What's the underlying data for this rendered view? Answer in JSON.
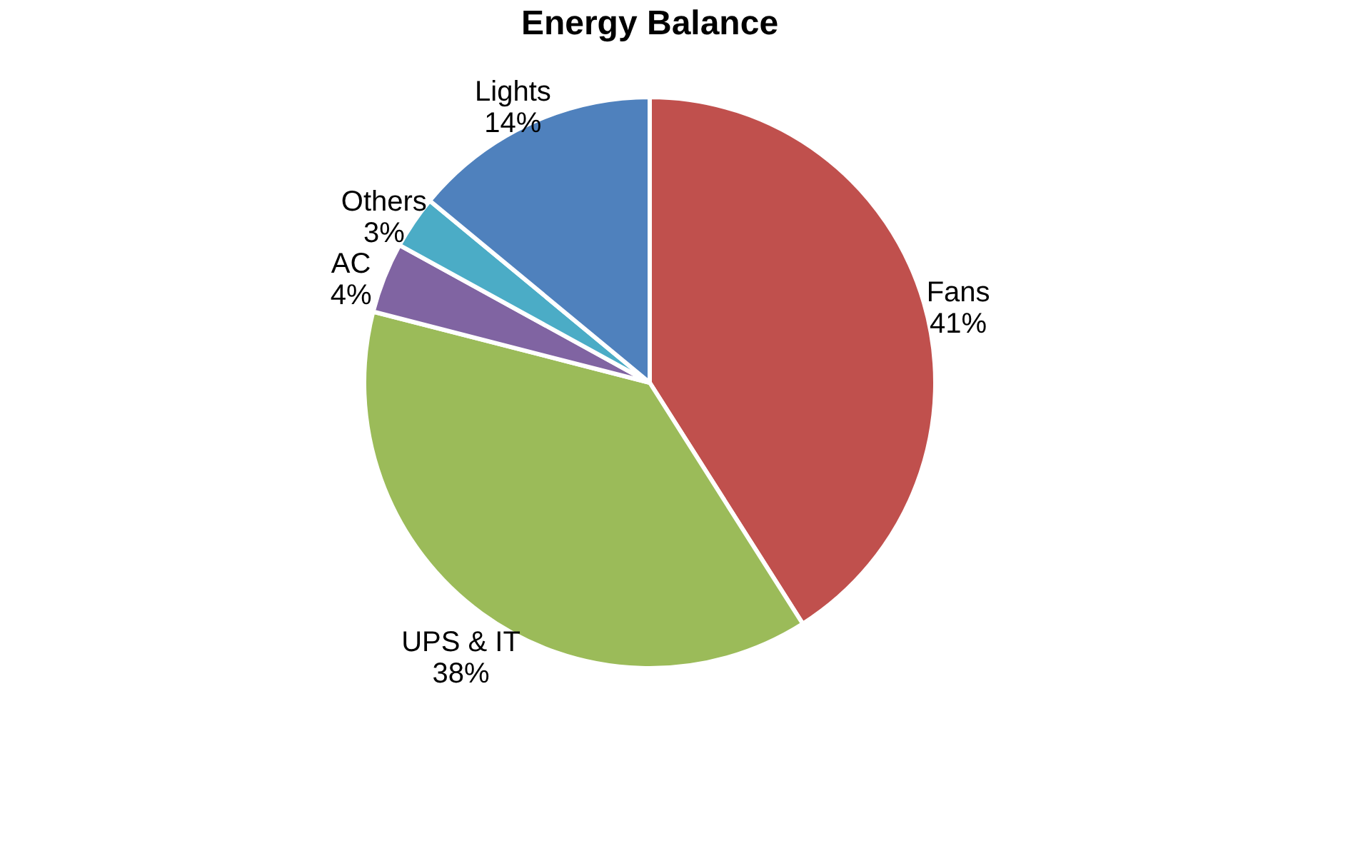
{
  "chart_data": {
    "type": "pie",
    "title": "Energy Balance",
    "categories": [
      "Fans",
      "UPS & IT",
      "AC",
      "Others",
      "Lights"
    ],
    "values": [
      41,
      38,
      4,
      3,
      14
    ],
    "colors": [
      "#c0504d",
      "#9bbb59",
      "#8064a2",
      "#4bacc6",
      "#4f81bd"
    ],
    "value_labels": [
      "41%",
      "38%",
      "4%",
      "3%",
      "14%"
    ],
    "legend": false
  }
}
